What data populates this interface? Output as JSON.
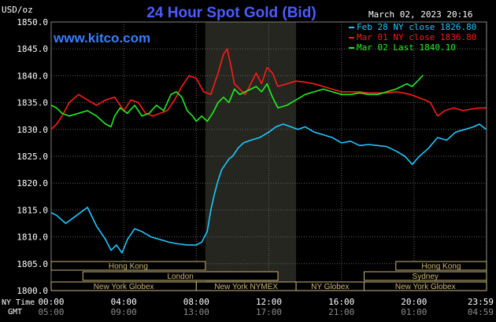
{
  "header": {
    "title": "24 Hour Spot Gold (Bid)",
    "y_unit": "USD/oz",
    "timestamp": "March 02, 2023 20:16",
    "website": "www.kitco.com"
  },
  "sessions": [
    {
      "label": "Hong Kong",
      "start": 0,
      "end": 8.5
    },
    {
      "label": "Hong Kong",
      "start": 19,
      "end": 24
    },
    {
      "label": "London",
      "start": 1.75,
      "end": 12.5
    },
    {
      "label": "Sydney",
      "start": 17.25,
      "end": 24
    },
    {
      "label": "New York Globex",
      "start": 0,
      "end": 8
    },
    {
      "label": "New York NYMEX",
      "start": 8,
      "end": 13.5
    },
    {
      "label": "NY Globex",
      "start": 13.5,
      "end": 17.25
    },
    {
      "label": "New York Globex",
      "start": 17.25,
      "end": 24
    }
  ],
  "time_rows": {
    "ny_label": "NY Time",
    "gmt_label": "GMT",
    "ny_ticks": [
      "00:00",
      "04:00",
      "08:00",
      "12:00",
      "16:00",
      "20:00",
      "23:59"
    ],
    "gmt_ticks": [
      "05:00",
      "09:00",
      "13:00",
      "17:00",
      "21:00",
      "01:00",
      "04:59"
    ]
  },
  "colors": {
    "background": "#000000",
    "grid": "#606060",
    "title": "#4b5cff",
    "website": "#3a7dff",
    "feb28": "#1ec8ff",
    "mar01": "#ff1a1a",
    "mar02": "#22ee22",
    "highlight": "#24261f",
    "session_box": "#c8b478"
  },
  "chart_data": {
    "type": "line",
    "title": "24 Hour Spot Gold (Bid)",
    "xlabel": "NY Time",
    "ylabel": "USD/oz",
    "xlim": [
      0,
      24
    ],
    "ylim": [
      1800,
      1850
    ],
    "y_ticks": [
      "1800.0",
      "1805.0",
      "1810.0",
      "1815.0",
      "1820.0",
      "1825.0",
      "1830.0",
      "1835.0",
      "1840.0",
      "1845.0",
      "1850.0"
    ],
    "grid": true,
    "highlight_range": [
      8.5,
      13.5
    ],
    "legend_position": "top-right",
    "series": [
      {
        "name": "Feb 28 NY close 1826.80",
        "color": "#1ec8ff",
        "x": [
          0,
          0.3,
          0.8,
          1.2,
          1.6,
          2.0,
          2.5,
          3.0,
          3.3,
          3.6,
          3.9,
          4.2,
          4.6,
          5.0,
          5.5,
          6.0,
          6.5,
          7.0,
          7.5,
          8.0,
          8.3,
          8.6,
          8.8,
          9.0,
          9.2,
          9.4,
          9.6,
          9.8,
          10.0,
          10.3,
          10.6,
          11.0,
          11.5,
          12.0,
          12.4,
          12.8,
          13.2,
          13.6,
          14.0,
          14.5,
          15.0,
          15.5,
          16.0,
          16.5,
          17.0,
          17.5,
          18.0,
          18.5,
          19.0,
          19.5,
          19.9,
          20.3,
          20.8,
          21.3,
          21.8,
          22.3,
          22.8,
          23.3,
          23.6,
          23.98
        ],
        "values": [
          1814.5,
          1814.0,
          1812.5,
          1813.5,
          1814.5,
          1815.5,
          1812.0,
          1809.5,
          1807.5,
          1808.5,
          1807.0,
          1809.5,
          1811.5,
          1811.0,
          1810.0,
          1809.5,
          1809.0,
          1808.7,
          1808.5,
          1808.5,
          1809.0,
          1811.0,
          1815.0,
          1818.0,
          1820.5,
          1822.5,
          1823.5,
          1824.5,
          1825.0,
          1826.5,
          1827.5,
          1828.0,
          1828.5,
          1829.5,
          1830.5,
          1831.0,
          1830.5,
          1830.0,
          1830.5,
          1829.5,
          1829.0,
          1828.5,
          1827.5,
          1827.8,
          1827.0,
          1827.2,
          1827.0,
          1826.8,
          1826.0,
          1825.0,
          1823.5,
          1825.0,
          1826.5,
          1828.5,
          1828.0,
          1829.5,
          1830.0,
          1830.5,
          1831.0,
          1830.0
        ]
      },
      {
        "name": "Mar 01 NY close 1836.80",
        "color": "#ff1a1a",
        "x": [
          0,
          0.3,
          0.6,
          1.0,
          1.5,
          2.0,
          2.5,
          3.0,
          3.5,
          3.8,
          4.0,
          4.4,
          4.8,
          5.2,
          5.6,
          6.0,
          6.4,
          6.8,
          7.2,
          7.6,
          8.0,
          8.4,
          8.8,
          9.2,
          9.5,
          9.7,
          9.9,
          10.1,
          10.4,
          10.7,
          11.0,
          11.3,
          11.6,
          11.9,
          12.2,
          12.5,
          13.0,
          13.5,
          14.0,
          14.5,
          15.0,
          15.5,
          16.0,
          16.5,
          17.0,
          17.5,
          18.0,
          18.5,
          19.0,
          19.4,
          19.8,
          20.2,
          20.6,
          20.9,
          21.3,
          21.7,
          22.2,
          22.7,
          23.2,
          23.6,
          23.98
        ],
        "values": [
          1830.0,
          1831.0,
          1832.5,
          1835.0,
          1836.5,
          1835.5,
          1834.5,
          1835.5,
          1836.0,
          1834.5,
          1833.5,
          1835.5,
          1835.0,
          1833.0,
          1832.5,
          1833.0,
          1833.5,
          1835.5,
          1838.0,
          1840.0,
          1839.5,
          1837.0,
          1836.5,
          1840.5,
          1844.0,
          1845.0,
          1842.0,
          1838.5,
          1837.5,
          1836.5,
          1838.5,
          1840.5,
          1838.5,
          1841.5,
          1840.5,
          1838.0,
          1838.5,
          1839.0,
          1838.8,
          1838.5,
          1838.0,
          1837.5,
          1837.0,
          1837.0,
          1837.0,
          1836.8,
          1836.8,
          1836.8,
          1837.0,
          1836.8,
          1836.5,
          1836.0,
          1835.5,
          1835.0,
          1832.5,
          1833.5,
          1834.0,
          1833.5,
          1833.8,
          1834.0,
          1834.0
        ]
      },
      {
        "name": "Mar 02 Last 1840.10",
        "color": "#22ee22",
        "x": [
          0,
          0.3,
          0.6,
          1.0,
          1.5,
          2.0,
          2.5,
          3.0,
          3.3,
          3.5,
          3.8,
          4.2,
          4.6,
          5.0,
          5.4,
          5.8,
          6.2,
          6.6,
          6.9,
          7.2,
          7.5,
          7.8,
          8.0,
          8.3,
          8.6,
          8.9,
          9.2,
          9.5,
          9.8,
          10.1,
          10.4,
          10.7,
          11.0,
          11.3,
          11.6,
          11.9,
          12.2,
          12.5,
          13.0,
          13.5,
          14.0,
          14.5,
          15.0,
          15.5,
          16.0,
          16.5,
          17.0,
          17.5,
          18.0,
          18.5,
          19.0,
          19.3,
          19.6,
          19.9,
          20.2,
          20.5
        ],
        "values": [
          1834.5,
          1834.0,
          1833.0,
          1832.5,
          1833.0,
          1833.5,
          1832.5,
          1831.0,
          1830.5,
          1832.5,
          1834.0,
          1833.0,
          1834.5,
          1832.5,
          1833.0,
          1834.5,
          1833.5,
          1836.5,
          1837.0,
          1836.0,
          1833.5,
          1832.5,
          1831.5,
          1832.5,
          1831.5,
          1833.0,
          1835.0,
          1836.0,
          1835.0,
          1837.5,
          1836.5,
          1837.0,
          1837.5,
          1838.0,
          1837.0,
          1838.5,
          1836.0,
          1834.0,
          1834.5,
          1835.5,
          1836.5,
          1837.0,
          1837.5,
          1837.0,
          1836.5,
          1836.5,
          1836.8,
          1836.5,
          1836.5,
          1837.0,
          1837.5,
          1838.0,
          1838.5,
          1838.0,
          1839.0,
          1840.1
        ]
      }
    ]
  }
}
